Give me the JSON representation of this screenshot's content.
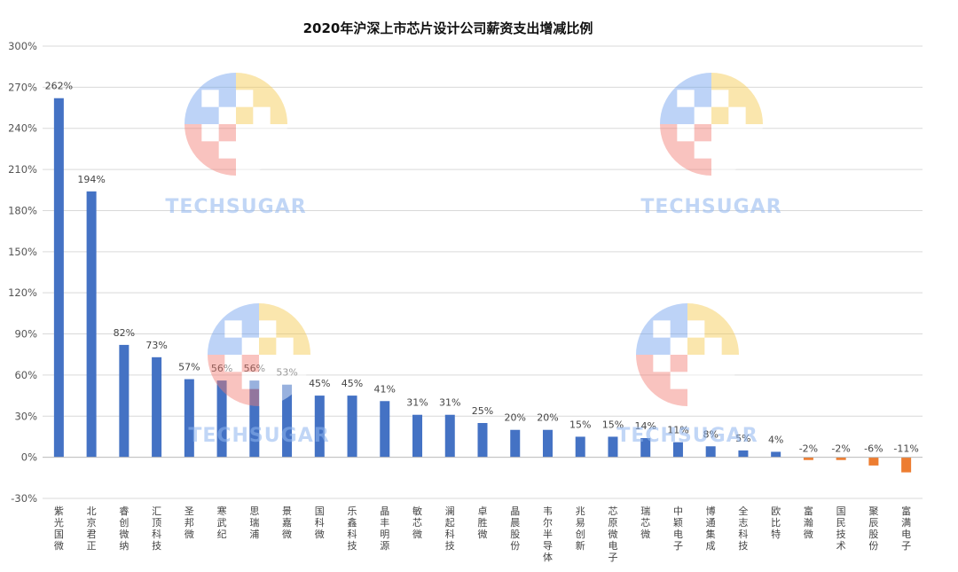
{
  "chart_data": {
    "type": "bar",
    "title": "2020年沪深上市芯片设计公司薪资支出增减比例",
    "xlabel": "",
    "ylabel": "",
    "ylim": [
      -30,
      300
    ],
    "yticks": [
      -30,
      0,
      30,
      60,
      90,
      120,
      150,
      180,
      210,
      240,
      270,
      300
    ],
    "ytick_labels": [
      "-30%",
      "0%",
      "30%",
      "60%",
      "90%",
      "120%",
      "150%",
      "180%",
      "210%",
      "240%",
      "270%",
      "300%"
    ],
    "grid": true,
    "categories": [
      "紫光国微",
      "北京君正",
      "睿创微纳",
      "汇顶科技",
      "圣邦微",
      "寒武纪",
      "思瑞浦",
      "景嘉微",
      "国科微",
      "乐鑫科技",
      "晶丰明源",
      "敏芯微",
      "澜起科技",
      "卓胜微",
      "晶晨股份",
      "韦尔半导体",
      "兆易创新",
      "芯原微电子",
      "瑞芯微",
      "中颖电子",
      "博通集成",
      "全志科技",
      "欧比特",
      "富瀚微",
      "国民技术",
      "聚辰股份",
      "富满电子"
    ],
    "values": [
      262,
      194,
      82,
      73,
      57,
      56,
      56,
      53,
      45,
      45,
      41,
      31,
      31,
      25,
      20,
      20,
      15,
      15,
      14,
      11,
      8,
      5,
      4,
      -2,
      -2,
      -6,
      -11
    ],
    "value_labels": [
      "262%",
      "194%",
      "82%",
      "73%",
      "57%",
      "56%",
      "56%",
      "53%",
      "45%",
      "45%",
      "41%",
      "31%",
      "31%",
      "25%",
      "20%",
      "20%",
      "15%",
      "15%",
      "14%",
      "11%",
      "8%",
      "5%",
      "4%",
      "-2%",
      "-2%",
      "-6%",
      "-11%"
    ],
    "colors": {
      "positive": "#4472c4",
      "negative": "#ed7d31",
      "grid": "#d9d9d9",
      "axis": "#bfbfbf"
    }
  },
  "watermark": {
    "text": "TECHSUGAR"
  }
}
